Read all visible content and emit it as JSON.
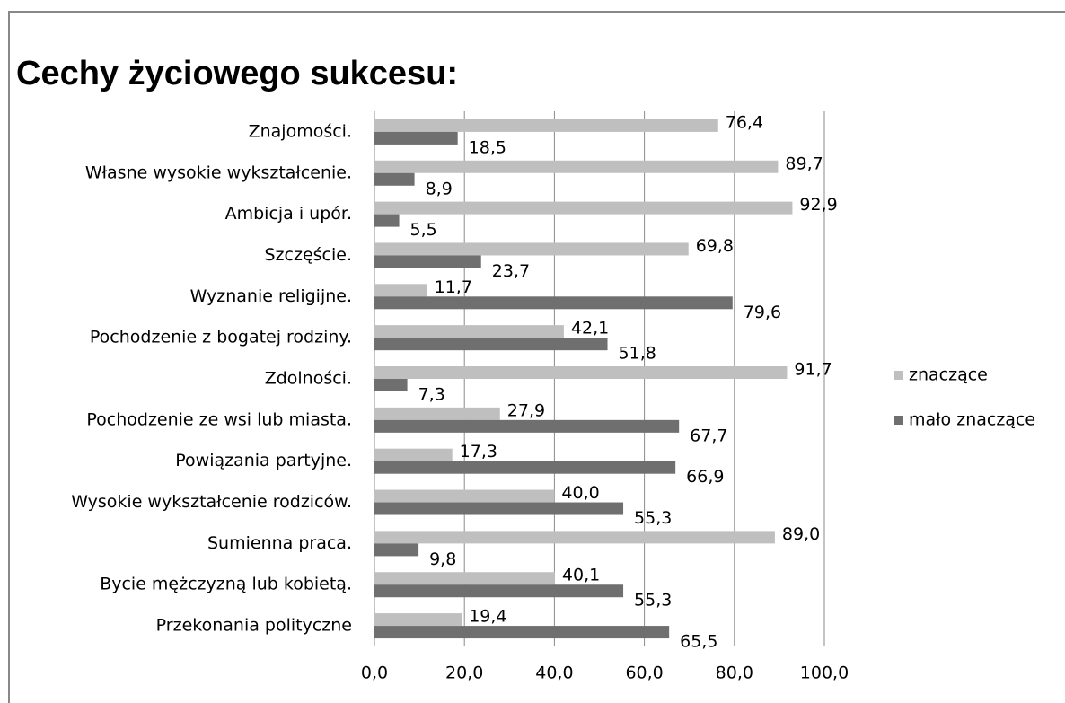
{
  "chart_data": {
    "type": "barh",
    "title": "Cechy życiowego sukcesu:",
    "categories": [
      "Znajomości.",
      "Własne wysokie wykształcenie.",
      "Ambicja i upór.",
      "Szczęście.",
      "Wyznanie religijne.",
      "Pochodzenie z bogatej rodziny.",
      "Zdolności.",
      "Pochodzenie ze wsi lub miasta.",
      "Powiązania partyjne.",
      "Wysokie wykształcenie rodziców.",
      "Sumienna praca.",
      "Bycie mężczyzną lub kobietą.",
      "Przekonania polityczne"
    ],
    "series": [
      {
        "name": "znaczące",
        "color": "#bfbfbf",
        "values": [
          76.4,
          89.7,
          92.9,
          69.8,
          11.7,
          42.1,
          91.7,
          27.9,
          17.3,
          40.0,
          89.0,
          40.1,
          19.4
        ],
        "value_labels": [
          "76,4",
          "89,7",
          "92,9",
          "69,8",
          "11,7",
          "42,1",
          "91,7",
          "27,9",
          "17,3",
          "40,0",
          "89,0",
          "40,1",
          "19,4"
        ]
      },
      {
        "name": "mało znaczące",
        "color": "#6f6f6f",
        "values": [
          18.5,
          8.9,
          5.5,
          23.7,
          79.6,
          51.8,
          7.3,
          67.7,
          66.9,
          55.3,
          9.8,
          55.3,
          65.5
        ],
        "value_labels": [
          "18,5",
          "8,9",
          "5,5",
          "23,7",
          "79,6",
          "51,8",
          "7,3",
          "67,7",
          "66,9",
          "55,3",
          "9,8",
          "55,3",
          "65,5"
        ]
      }
    ],
    "xlim": [
      0,
      100
    ],
    "xticks": [
      {
        "value": 0,
        "label": "0,0"
      },
      {
        "value": 20,
        "label": "20,0"
      },
      {
        "value": 40,
        "label": "40,0"
      },
      {
        "value": 60,
        "label": "60,0"
      },
      {
        "value": 80,
        "label": "80,0"
      },
      {
        "value": 100,
        "label": "100,0"
      }
    ],
    "grid": true,
    "legend": "right"
  }
}
